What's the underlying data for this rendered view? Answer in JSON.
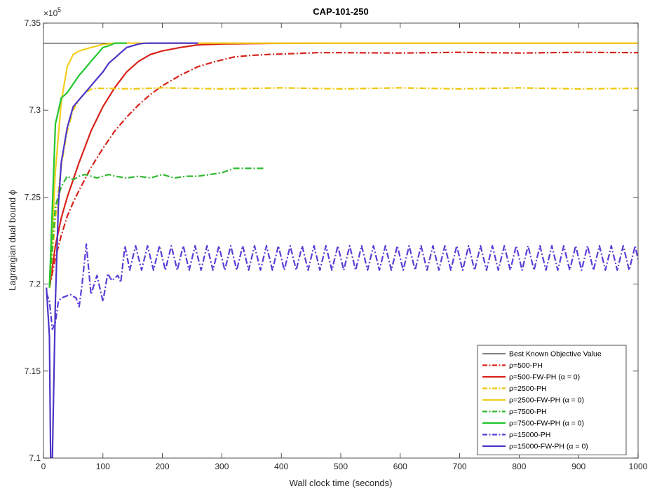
{
  "chart_data": {
    "type": "line",
    "title": "CAP-101-250",
    "xlabel": "Wall clock time (seconds)",
    "ylabel": "Lagrangian dual bound ϕ",
    "y_exponent_label": "×10",
    "y_exponent_power": "5",
    "xlim": [
      0,
      1000
    ],
    "ylim": [
      7.1,
      7.35
    ],
    "x_ticks": [
      0,
      100,
      200,
      300,
      400,
      500,
      600,
      700,
      800,
      900,
      1000
    ],
    "y_ticks": [
      7.1,
      7.15,
      7.2,
      7.25,
      7.3,
      7.35
    ],
    "x_tick_labels": [
      "0",
      "100",
      "200",
      "300",
      "400",
      "500",
      "600",
      "700",
      "800",
      "900",
      "1000"
    ],
    "y_tick_labels": [
      "7.1",
      "7.15",
      "7.2",
      "7.25",
      "7.3",
      "7.35"
    ],
    "grid": false,
    "legend_position": "bottom-right",
    "series": [
      {
        "name": "Best Known Objective Value",
        "color": "#000000",
        "dash": "solid",
        "x": [
          0,
          1000
        ],
        "y": [
          7.3385,
          7.3385
        ]
      },
      {
        "name": "ρ=500-PH",
        "color": "#d9221a",
        "dash": "dashdot",
        "x": [
          10,
          20,
          30,
          40,
          50,
          60,
          80,
          100,
          120,
          140,
          160,
          180,
          200,
          230,
          260,
          290,
          320,
          350,
          380,
          420,
          460,
          500,
          600,
          700,
          800,
          900,
          1000
        ],
        "y": [
          7.198,
          7.215,
          7.228,
          7.239,
          7.247,
          7.254,
          7.267,
          7.278,
          7.288,
          7.296,
          7.303,
          7.309,
          7.314,
          7.32,
          7.325,
          7.328,
          7.3305,
          7.3315,
          7.332,
          7.3325,
          7.333,
          7.333,
          7.3328,
          7.3332,
          7.3328,
          7.3332,
          7.333
        ]
      },
      {
        "name": "ρ=500-FW-PH (α = 0)",
        "color": "#d9221a",
        "dash": "solid",
        "x": [
          10,
          20,
          30,
          40,
          50,
          60,
          70,
          80,
          90,
          100,
          120,
          140,
          160,
          180,
          200,
          230,
          260,
          300,
          400,
          600,
          800,
          1000
        ],
        "y": [
          7.198,
          7.222,
          7.238,
          7.25,
          7.26,
          7.27,
          7.279,
          7.288,
          7.295,
          7.302,
          7.313,
          7.322,
          7.328,
          7.332,
          7.334,
          7.336,
          7.3375,
          7.338,
          7.3384,
          7.3385,
          7.3385,
          7.3385
        ]
      },
      {
        "name": "ρ=2500-PH",
        "color": "#eec80a",
        "dash": "dashdot",
        "x": [
          10,
          20,
          30,
          40,
          50,
          60,
          70,
          80,
          90,
          100,
          150,
          200,
          300,
          400,
          500,
          600,
          700,
          800,
          900,
          1000
        ],
        "y": [
          7.198,
          7.238,
          7.268,
          7.288,
          7.3,
          7.306,
          7.31,
          7.312,
          7.3125,
          7.3125,
          7.3122,
          7.3128,
          7.3122,
          7.3128,
          7.3122,
          7.3128,
          7.3122,
          7.3128,
          7.3122,
          7.3125
        ]
      },
      {
        "name": "ρ=2500-FW-PH (α = 0)",
        "color": "#f2ce1c",
        "dash": "solid",
        "x": [
          10,
          20,
          30,
          40,
          50,
          60,
          80,
          100,
          120,
          150,
          200,
          400,
          700,
          1000
        ],
        "y": [
          7.198,
          7.265,
          7.305,
          7.325,
          7.332,
          7.334,
          7.336,
          7.3378,
          7.3385,
          7.3385,
          7.3385,
          7.3385,
          7.3385,
          7.3385
        ]
      },
      {
        "name": "ρ=7500-PH",
        "color": "#2fb92f",
        "dash": "dashdot",
        "x": [
          10,
          20,
          30,
          40,
          50,
          60,
          70,
          80,
          90,
          100,
          110,
          120,
          140,
          160,
          180,
          200,
          220,
          240,
          260,
          280,
          300,
          320,
          340,
          370
        ],
        "y": [
          7.198,
          7.245,
          7.256,
          7.262,
          7.26,
          7.262,
          7.263,
          7.262,
          7.261,
          7.262,
          7.263,
          7.262,
          7.261,
          7.262,
          7.261,
          7.263,
          7.261,
          7.262,
          7.262,
          7.263,
          7.264,
          7.2665,
          7.2665,
          7.2665
        ]
      },
      {
        "name": "ρ=7500-FW-PH (α = 0)",
        "color": "#22c62e",
        "dash": "solid",
        "x": [
          10,
          20,
          30,
          40,
          50,
          60,
          70,
          80,
          90,
          100,
          110,
          120,
          140
        ],
        "y": [
          7.198,
          7.292,
          7.307,
          7.31,
          7.315,
          7.32,
          7.324,
          7.328,
          7.332,
          7.336,
          7.337,
          7.3385,
          7.3385
        ]
      },
      {
        "name": "ρ=15000-PH",
        "color": "#5c3cd6",
        "dash": "dashdot",
        "x": [
          5,
          10,
          15,
          20,
          25,
          30,
          45,
          55,
          60,
          65,
          72,
          80,
          90,
          100,
          108,
          115,
          125,
          130,
          137,
          145,
          155,
          165,
          175,
          185,
          195,
          205,
          215,
          225,
          235,
          245,
          255,
          265,
          275,
          285,
          295,
          305,
          315,
          325,
          335,
          345,
          355,
          365,
          375,
          385,
          395,
          405,
          415,
          425,
          435,
          445,
          455,
          465,
          475,
          485,
          495,
          505,
          515,
          525,
          535,
          545,
          555,
          565,
          575,
          585,
          595,
          605,
          615,
          625,
          635,
          645,
          655,
          665,
          675,
          685,
          695,
          705,
          715,
          725,
          735,
          745,
          755,
          765,
          775,
          785,
          795,
          805,
          815,
          825,
          835,
          845,
          855,
          865,
          875,
          885,
          895,
          905,
          915,
          925,
          935,
          945,
          955,
          965,
          975,
          985,
          995,
          1000
        ],
        "y": [
          7.195,
          7.19,
          7.174,
          7.178,
          7.19,
          7.192,
          7.194,
          7.192,
          7.187,
          7.2,
          7.223,
          7.194,
          7.205,
          7.19,
          7.206,
          7.202,
          7.205,
          7.201,
          7.222,
          7.208,
          7.222,
          7.208,
          7.222,
          7.208,
          7.222,
          7.208,
          7.222,
          7.208,
          7.222,
          7.208,
          7.222,
          7.208,
          7.222,
          7.208,
          7.222,
          7.208,
          7.222,
          7.208,
          7.222,
          7.208,
          7.222,
          7.208,
          7.222,
          7.208,
          7.222,
          7.208,
          7.222,
          7.208,
          7.222,
          7.208,
          7.222,
          7.208,
          7.222,
          7.208,
          7.222,
          7.208,
          7.222,
          7.208,
          7.222,
          7.208,
          7.222,
          7.208,
          7.222,
          7.208,
          7.222,
          7.208,
          7.222,
          7.208,
          7.222,
          7.208,
          7.222,
          7.208,
          7.222,
          7.208,
          7.222,
          7.208,
          7.222,
          7.208,
          7.222,
          7.208,
          7.222,
          7.208,
          7.222,
          7.208,
          7.222,
          7.208,
          7.222,
          7.208,
          7.222,
          7.208,
          7.222,
          7.208,
          7.222,
          7.208,
          7.222,
          7.208,
          7.222,
          7.208,
          7.222,
          7.208,
          7.222,
          7.208,
          7.222,
          7.208,
          7.222,
          7.214
        ]
      },
      {
        "name": "ρ=15000-FW-PH (α = 0)",
        "color": "#4b35c8",
        "dash": "solid",
        "x": [
          5,
          10,
          12,
          15,
          20,
          25,
          30,
          40,
          50,
          60,
          70,
          80,
          90,
          100,
          110,
          120,
          130,
          140,
          150,
          160,
          170,
          180,
          200,
          230,
          260
        ],
        "y": [
          7.198,
          7.17,
          7.1,
          7.1,
          7.19,
          7.245,
          7.27,
          7.29,
          7.302,
          7.306,
          7.31,
          7.314,
          7.318,
          7.322,
          7.327,
          7.33,
          7.333,
          7.336,
          7.337,
          7.338,
          7.3384,
          7.3385,
          7.3385,
          7.3385,
          7.3385
        ]
      }
    ]
  }
}
